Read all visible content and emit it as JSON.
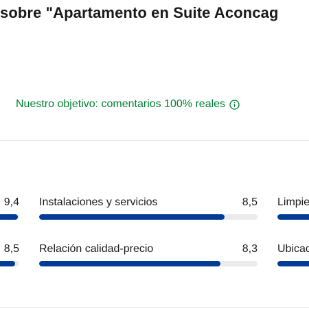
{
  "header": {
    "title": "sobre \"Apartamento en Suite Aconcag"
  },
  "objective": {
    "text": "Nuestro objetivo: comentarios 100% reales",
    "icon": "info-icon",
    "color": "#008234"
  },
  "colors": {
    "bar_fill": "#003b95",
    "bar_track": "#ebebeb"
  },
  "ratings": {
    "left_col": [
      {
        "score": "9,4",
        "fraction": 0.94
      },
      {
        "score": "8,5",
        "fraction": 0.85
      }
    ],
    "middle_col": [
      {
        "label": "Instalaciones y servicios",
        "score": "8,5",
        "fraction": 0.85
      },
      {
        "label": "Relación calidad-precio",
        "score": "8,3",
        "fraction": 0.83
      }
    ],
    "right_col": [
      {
        "label": "Limpie",
        "fraction": 0.9
      },
      {
        "label": "Ubicac",
        "fraction": 0.9
      }
    ]
  }
}
